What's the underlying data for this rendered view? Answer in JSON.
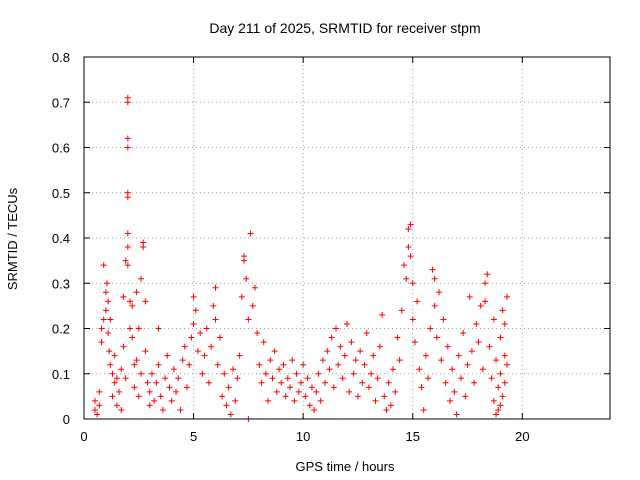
{
  "chart_data": {
    "type": "scatter",
    "title": "Day 211 of 2025, SRMTID for receiver stpm",
    "xlabel": "GPS time / hours",
    "ylabel": "SRMTID / TECUs",
    "xlim": [
      0,
      24
    ],
    "ylim": [
      0,
      0.8
    ],
    "xticks": [
      0,
      5,
      10,
      15,
      20
    ],
    "yticks": [
      0,
      0.1,
      0.2,
      0.3,
      0.4,
      0.5,
      0.6,
      0.7,
      0.8
    ],
    "xtick_labels": [
      "0",
      "5",
      "10",
      "15",
      "20"
    ],
    "ytick_labels": [
      "0",
      "0.1",
      "0.2",
      "0.3",
      "0.4",
      "0.5",
      "0.6",
      "0.7",
      "0.8"
    ],
    "grid": true,
    "marker": "+",
    "color": "#ff0000",
    "series": [
      {
        "name": "SRMTID",
        "points": [
          [
            0.5,
            0.02
          ],
          [
            0.5,
            0.04
          ],
          [
            0.6,
            0.01
          ],
          [
            0.7,
            0.03
          ],
          [
            0.7,
            0.06
          ],
          [
            0.8,
            0.17
          ],
          [
            0.8,
            0.2
          ],
          [
            0.9,
            0.34
          ],
          [
            0.9,
            0.22
          ],
          [
            1.0,
            0.28
          ],
          [
            1.0,
            0.24
          ],
          [
            1.05,
            0.3
          ],
          [
            1.1,
            0.26
          ],
          [
            1.1,
            0.19
          ],
          [
            1.15,
            0.15
          ],
          [
            1.2,
            0.12
          ],
          [
            1.2,
            0.22
          ],
          [
            1.3,
            0.1
          ],
          [
            1.3,
            0.05
          ],
          [
            1.4,
            0.08
          ],
          [
            1.4,
            0.14
          ],
          [
            1.5,
            0.03
          ],
          [
            1.5,
            0.09
          ],
          [
            1.6,
            0.06
          ],
          [
            1.7,
            0.11
          ],
          [
            1.7,
            0.02
          ],
          [
            1.8,
            0.27
          ],
          [
            1.8,
            0.16
          ],
          [
            1.9,
            0.09
          ],
          [
            1.9,
            0.35
          ],
          [
            2.0,
            0.71
          ],
          [
            2.0,
            0.7
          ],
          [
            2.0,
            0.62
          ],
          [
            2.0,
            0.6
          ],
          [
            2.0,
            0.5
          ],
          [
            2.0,
            0.49
          ],
          [
            2.0,
            0.41
          ],
          [
            2.0,
            0.34
          ],
          [
            2.0,
            0.38
          ],
          [
            2.1,
            0.26
          ],
          [
            2.1,
            0.2
          ],
          [
            2.2,
            0.25
          ],
          [
            2.2,
            0.18
          ],
          [
            2.3,
            0.12
          ],
          [
            2.3,
            0.07
          ],
          [
            2.4,
            0.13
          ],
          [
            2.4,
            0.28
          ],
          [
            2.5,
            0.2
          ],
          [
            2.5,
            0.05
          ],
          [
            2.6,
            0.1
          ],
          [
            2.6,
            0.31
          ],
          [
            2.7,
            0.38
          ],
          [
            2.7,
            0.39
          ],
          [
            2.8,
            0.26
          ],
          [
            2.8,
            0.15
          ],
          [
            2.9,
            0.08
          ],
          [
            3.0,
            0.03
          ],
          [
            3.0,
            0.06
          ],
          [
            3.1,
            0.1
          ],
          [
            3.2,
            0.04
          ],
          [
            3.3,
            0.08
          ],
          [
            3.4,
            0.2
          ],
          [
            3.4,
            0.12
          ],
          [
            3.5,
            0.05
          ],
          [
            3.6,
            0.02
          ],
          [
            3.7,
            0.09
          ],
          [
            3.8,
            0.14
          ],
          [
            3.9,
            0.07
          ],
          [
            4.0,
            0.04
          ],
          [
            4.1,
            0.11
          ],
          [
            4.2,
            0.06
          ],
          [
            4.3,
            0.09
          ],
          [
            4.4,
            0.02
          ],
          [
            4.5,
            0.13
          ],
          [
            4.6,
            0.16
          ],
          [
            4.7,
            0.07
          ],
          [
            4.8,
            0.12
          ],
          [
            4.9,
            0.18
          ],
          [
            5.0,
            0.27
          ],
          [
            5.0,
            0.21
          ],
          [
            5.1,
            0.24
          ],
          [
            5.2,
            0.15
          ],
          [
            5.3,
            0.19
          ],
          [
            5.4,
            0.1
          ],
          [
            5.5,
            0.14
          ],
          [
            5.6,
            0.2
          ],
          [
            5.7,
            0.08
          ],
          [
            5.8,
            0.16
          ],
          [
            5.9,
            0.25
          ],
          [
            6.0,
            0.29
          ],
          [
            6.0,
            0.22
          ],
          [
            6.1,
            0.12
          ],
          [
            6.2,
            0.18
          ],
          [
            6.3,
            0.05
          ],
          [
            6.4,
            0.1
          ],
          [
            6.5,
            0.03
          ],
          [
            6.6,
            0.07
          ],
          [
            6.7,
            0.01
          ],
          [
            6.8,
            0.11
          ],
          [
            6.9,
            0.04
          ],
          [
            7.0,
            0.09
          ],
          [
            7.1,
            0.14
          ],
          [
            7.2,
            0.27
          ],
          [
            7.3,
            0.35
          ],
          [
            7.3,
            0.36
          ],
          [
            7.4,
            0.31
          ],
          [
            7.5,
            0.22
          ],
          [
            7.5,
            0.0
          ],
          [
            7.6,
            0.41
          ],
          [
            7.7,
            0.25
          ],
          [
            7.8,
            0.29
          ],
          [
            7.9,
            0.19
          ],
          [
            8.0,
            0.12
          ],
          [
            8.1,
            0.08
          ],
          [
            8.2,
            0.17
          ],
          [
            8.3,
            0.1
          ],
          [
            8.4,
            0.04
          ],
          [
            8.5,
            0.13
          ],
          [
            8.6,
            0.09
          ],
          [
            8.7,
            0.15
          ],
          [
            8.8,
            0.06
          ],
          [
            8.9,
            0.11
          ],
          [
            9.0,
            0.08
          ],
          [
            9.1,
            0.12
          ],
          [
            9.2,
            0.05
          ],
          [
            9.3,
            0.09
          ],
          [
            9.4,
            0.07
          ],
          [
            9.5,
            0.13
          ],
          [
            9.6,
            0.04
          ],
          [
            9.7,
            0.1
          ],
          [
            9.8,
            0.06
          ],
          [
            9.9,
            0.08
          ],
          [
            10.0,
            0.12
          ],
          [
            10.1,
            0.05
          ],
          [
            10.2,
            0.09
          ],
          [
            10.3,
            0.03
          ],
          [
            10.4,
            0.07
          ],
          [
            10.5,
            0.02
          ],
          [
            10.6,
            0.06
          ],
          [
            10.7,
            0.1
          ],
          [
            10.8,
            0.04
          ],
          [
            10.9,
            0.13
          ],
          [
            11.0,
            0.08
          ],
          [
            11.1,
            0.15
          ],
          [
            11.2,
            0.11
          ],
          [
            11.3,
            0.18
          ],
          [
            11.4,
            0.07
          ],
          [
            11.5,
            0.2
          ],
          [
            11.6,
            0.12
          ],
          [
            11.7,
            0.16
          ],
          [
            11.8,
            0.09
          ],
          [
            11.9,
            0.14
          ],
          [
            12.0,
            0.21
          ],
          [
            12.1,
            0.06
          ],
          [
            12.2,
            0.17
          ],
          [
            12.3,
            0.1
          ],
          [
            12.4,
            0.13
          ],
          [
            12.5,
            0.05
          ],
          [
            12.6,
            0.15
          ],
          [
            12.7,
            0.08
          ],
          [
            12.8,
            0.12
          ],
          [
            12.9,
            0.19
          ],
          [
            13.0,
            0.07
          ],
          [
            13.1,
            0.1
          ],
          [
            13.2,
            0.14
          ],
          [
            13.3,
            0.04
          ],
          [
            13.4,
            0.09
          ],
          [
            13.5,
            0.16
          ],
          [
            13.6,
            0.23
          ],
          [
            13.7,
            0.05
          ],
          [
            13.8,
            0.02
          ],
          [
            13.9,
            0.08
          ],
          [
            14.0,
            0.03
          ],
          [
            14.1,
            0.11
          ],
          [
            14.2,
            0.06
          ],
          [
            14.3,
            0.18
          ],
          [
            14.4,
            0.13
          ],
          [
            14.5,
            0.24
          ],
          [
            14.6,
            0.34
          ],
          [
            14.7,
            0.31
          ],
          [
            14.8,
            0.42
          ],
          [
            14.8,
            0.38
          ],
          [
            14.9,
            0.43
          ],
          [
            14.9,
            0.36
          ],
          [
            15.0,
            0.3
          ],
          [
            15.0,
            0.22
          ],
          [
            15.1,
            0.17
          ],
          [
            15.2,
            0.26
          ],
          [
            15.3,
            0.11
          ],
          [
            15.4,
            0.07
          ],
          [
            15.5,
            0.02
          ],
          [
            15.6,
            0.14
          ],
          [
            15.7,
            0.09
          ],
          [
            15.8,
            0.2
          ],
          [
            15.9,
            0.33
          ],
          [
            16.0,
            0.31
          ],
          [
            16.0,
            0.25
          ],
          [
            16.1,
            0.18
          ],
          [
            16.2,
            0.28
          ],
          [
            16.3,
            0.13
          ],
          [
            16.4,
            0.22
          ],
          [
            16.5,
            0.08
          ],
          [
            16.6,
            0.16
          ],
          [
            16.7,
            0.04
          ],
          [
            16.8,
            0.11
          ],
          [
            16.9,
            0.06
          ],
          [
            17.0,
            0.01
          ],
          [
            17.1,
            0.14
          ],
          [
            17.2,
            0.09
          ],
          [
            17.3,
            0.19
          ],
          [
            17.4,
            0.05
          ],
          [
            17.5,
            0.12
          ],
          [
            17.6,
            0.27
          ],
          [
            17.7,
            0.15
          ],
          [
            17.8,
            0.08
          ],
          [
            17.9,
            0.21
          ],
          [
            18.0,
            0.17
          ],
          [
            18.1,
            0.25
          ],
          [
            18.2,
            0.11
          ],
          [
            18.3,
            0.3
          ],
          [
            18.3,
            0.26
          ],
          [
            18.4,
            0.32
          ],
          [
            18.5,
            0.16
          ],
          [
            18.6,
            0.09
          ],
          [
            18.7,
            0.22
          ],
          [
            18.8,
            0.13
          ],
          [
            18.8,
            0.01
          ],
          [
            18.9,
            0.07
          ],
          [
            19.0,
            0.18
          ],
          [
            19.0,
            0.1
          ],
          [
            19.1,
            0.24
          ],
          [
            19.2,
            0.14
          ],
          [
            19.2,
            0.08
          ],
          [
            19.3,
            0.27
          ],
          [
            19.3,
            0.12
          ],
          [
            19.2,
            0.21
          ],
          [
            19.1,
            0.05
          ],
          [
            19.0,
            0.03
          ],
          [
            18.9,
            0.02
          ],
          [
            18.7,
            0.04
          ]
        ]
      }
    ]
  }
}
